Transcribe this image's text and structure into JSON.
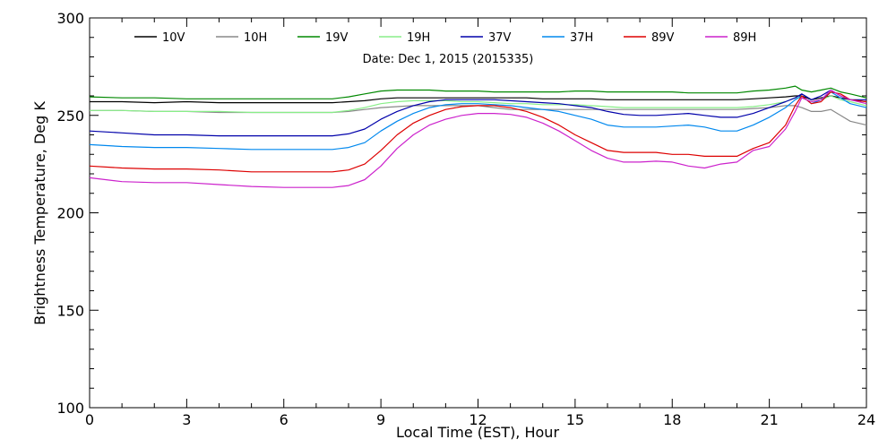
{
  "chart_data": {
    "type": "line",
    "title": "",
    "annotation": "Date: Dec  1, 2015 (2015335)",
    "xlabel": "Local Time (EST), Hour",
    "ylabel": "Brightness Temperature, Deg K",
    "xlim": [
      0,
      24
    ],
    "ylim": [
      100,
      300
    ],
    "xticks": [
      0,
      3,
      6,
      9,
      12,
      15,
      18,
      21,
      24
    ],
    "yticks": [
      100,
      150,
      200,
      250,
      300
    ],
    "grid": false,
    "legend_position": "top",
    "x": [
      0,
      1,
      2,
      3,
      4,
      5,
      6,
      7,
      7.5,
      8,
      8.5,
      9,
      9.5,
      10,
      10.5,
      11,
      11.5,
      12,
      12.5,
      13,
      13.5,
      14,
      14.5,
      15,
      15.5,
      16,
      16.5,
      17,
      17.5,
      18,
      18.5,
      19,
      19.5,
      20,
      20.5,
      21,
      21.5,
      21.8,
      22,
      22.3,
      22.6,
      22.9,
      23.2,
      23.5,
      24
    ],
    "series": [
      {
        "name": "10V",
        "color": "#000000",
        "values": [
          257,
          257,
          256.5,
          257,
          256.5,
          256.5,
          256.5,
          256.5,
          256.5,
          257,
          257.5,
          258.5,
          259,
          259,
          259,
          259,
          259,
          259,
          259,
          259,
          259,
          258.5,
          258.5,
          258.5,
          258.5,
          258,
          258,
          258,
          258,
          258,
          258,
          258,
          258,
          258,
          258.5,
          259,
          259.5,
          260,
          260,
          258,
          259,
          260,
          259,
          258,
          257
        ]
      },
      {
        "name": "10H",
        "color": "#888888",
        "values": [
          252.5,
          252.5,
          252,
          252,
          251.5,
          251.5,
          251.5,
          251.5,
          251.5,
          252,
          253,
          254,
          254.5,
          255,
          255,
          255,
          255,
          255,
          254,
          253,
          253,
          253,
          253,
          253,
          253,
          253,
          253,
          253,
          253,
          253,
          253,
          253,
          253,
          253,
          253.5,
          254,
          255,
          255,
          254,
          252,
          252,
          253,
          250,
          247,
          245
        ]
      },
      {
        "name": "19V",
        "color": "#008800",
        "values": [
          259.5,
          259,
          259,
          258.5,
          258.5,
          258.5,
          258.5,
          258.5,
          258.5,
          259.5,
          261,
          262.5,
          263,
          263,
          263,
          262.5,
          262.5,
          262.5,
          262,
          262,
          262,
          262,
          262,
          262.5,
          262.5,
          262,
          262,
          262,
          262,
          262,
          261.5,
          261.5,
          261.5,
          261.5,
          262.5,
          263,
          264,
          265,
          263,
          262,
          263,
          264,
          262,
          261,
          259
        ]
      },
      {
        "name": "19H",
        "color": "#88ee88",
        "values": [
          252.5,
          252.5,
          252,
          252,
          252,
          251.5,
          251.5,
          251.5,
          251.5,
          252.5,
          254,
          256,
          257,
          257.5,
          257.5,
          257.5,
          257,
          257,
          256.5,
          256,
          256,
          255.5,
          255.5,
          255.5,
          255,
          254.5,
          254,
          254,
          254,
          254,
          254,
          254,
          254,
          254,
          254.5,
          255.5,
          257,
          259,
          259,
          257,
          258,
          260,
          258,
          257,
          255
        ]
      },
      {
        "name": "37V",
        "color": "#0000aa",
        "values": [
          242,
          241,
          240,
          240,
          239.5,
          239.5,
          239.5,
          239.5,
          239.5,
          240.5,
          243,
          248,
          252,
          255,
          257,
          258,
          258,
          258,
          258,
          257.5,
          257,
          256.5,
          256,
          255,
          254,
          252,
          250.5,
          250,
          250,
          250.5,
          251,
          250,
          249,
          249,
          251,
          254,
          257,
          259,
          261,
          258,
          260,
          263,
          260,
          258,
          258
        ]
      },
      {
        "name": "37H",
        "color": "#0088ee",
        "values": [
          235,
          234,
          233.5,
          233.5,
          233,
          232.5,
          232.5,
          232.5,
          232.5,
          233.5,
          236,
          242,
          247,
          251,
          254,
          255.5,
          256,
          256,
          255.5,
          255,
          254,
          253,
          252,
          250,
          248,
          245,
          244,
          244,
          244,
          244.5,
          245,
          244,
          242,
          242,
          245,
          249,
          254,
          258,
          260,
          256,
          258,
          262,
          259,
          256,
          254
        ]
      },
      {
        "name": "89V",
        "color": "#dd0000",
        "values": [
          224,
          223,
          222.5,
          222.5,
          222,
          221,
          221,
          221,
          221,
          222,
          225,
          232,
          240,
          246,
          250,
          253,
          254.5,
          255,
          255,
          254,
          252,
          249,
          245,
          240,
          236,
          232,
          231,
          231,
          231,
          230,
          230,
          229,
          229,
          229,
          233,
          236,
          245,
          255,
          260,
          256,
          257,
          262,
          261,
          258,
          257
        ]
      },
      {
        "name": "89H",
        "color": "#cc22cc",
        "values": [
          218,
          216,
          215.5,
          215.5,
          214.5,
          213.5,
          213,
          213,
          213,
          214,
          217,
          224,
          233,
          240,
          245,
          248,
          250,
          251,
          251,
          250.5,
          249,
          246,
          242,
          237,
          232,
          228,
          226,
          226,
          226.5,
          226,
          224,
          223,
          225,
          226,
          232,
          234,
          243,
          252,
          259,
          257,
          258,
          263,
          260,
          258,
          256
        ]
      }
    ]
  }
}
